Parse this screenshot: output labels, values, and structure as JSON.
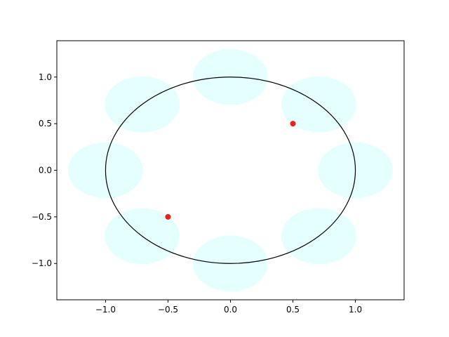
{
  "chart_data": {
    "type": "scatter",
    "xlim": [
      -1.39,
      1.39
    ],
    "ylim": [
      -1.39,
      1.39
    ],
    "xticks": [
      {
        "value": -1,
        "label": "−1.0"
      },
      {
        "value": -0.5,
        "label": "−0.5"
      },
      {
        "value": 0,
        "label": "0.0"
      },
      {
        "value": 0.5,
        "label": "0.5"
      },
      {
        "value": 1,
        "label": "1.0"
      }
    ],
    "yticks": [
      {
        "value": -1,
        "label": "−1.0"
      },
      {
        "value": -0.5,
        "label": "−0.5"
      },
      {
        "value": 0,
        "label": "0.0"
      },
      {
        "value": 0.5,
        "label": "0.5"
      },
      {
        "value": 1,
        "label": "1.0"
      }
    ],
    "patches": {
      "color": "#e0ffff",
      "x": [
        1,
        0.707,
        0,
        -0.707,
        -1,
        -0.707,
        0,
        0.707
      ],
      "y": [
        0,
        0.707,
        1,
        0.707,
        0,
        -0.707,
        -1,
        -0.707
      ],
      "radius": [
        0.3,
        0.3,
        0.3,
        0.3,
        0.3,
        0.3,
        0.3,
        0.3
      ]
    },
    "outline": {
      "radius": 1,
      "color": "#000000"
    },
    "points": {
      "color": "#e32222",
      "x": [
        0.5,
        -0.5
      ],
      "y": [
        0.5,
        -0.5
      ]
    }
  }
}
